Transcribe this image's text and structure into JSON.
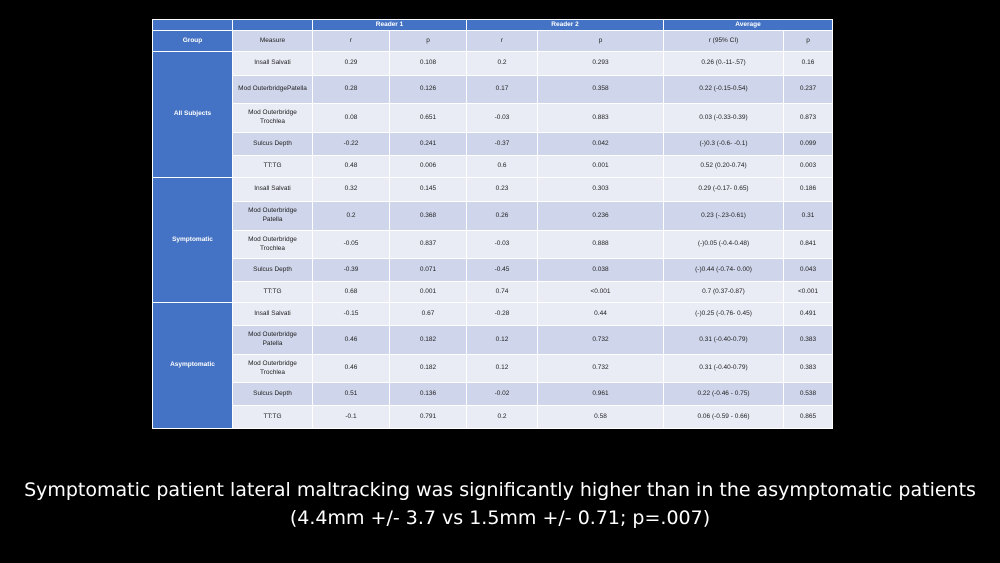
{
  "table": {
    "top_headers": [
      "",
      "",
      "Reader 1",
      "Reader 2",
      "Average"
    ],
    "headers": [
      "Group",
      "Measure",
      "r",
      "p",
      "r",
      "p",
      "r (95% CI)",
      "p"
    ],
    "groups": [
      {
        "name": "All Subjects",
        "rows": [
          [
            "Insall Salvati",
            "0.29",
            "0.108",
            "0.2",
            "0.293",
            "0.26 (0.-11-.57)",
            "0.16"
          ],
          [
            "Mod OuterbridgePatella",
            "0.28",
            "0.126",
            "0.17",
            "0.358",
            "0.22 (-0.15-0.54)",
            "0.237"
          ],
          [
            "Mod Outerbridge Trochlea",
            "0.08",
            "0.651",
            "-0.03",
            "0.883",
            "0.03 (-0.33-0.39)",
            "0.873"
          ],
          [
            "Sulcus Depth",
            "-0.22",
            "0.241",
            "-0.37",
            "0.042",
            "(-)0.3 (-0.6- -0.1)",
            "0.099"
          ],
          [
            "TT:TG",
            "0.48",
            "0.006",
            "0.6",
            "0.001",
            "0.52 (0.20-0.74)",
            "0.003"
          ]
        ]
      },
      {
        "name": "Symptomatic",
        "rows": [
          [
            "Insall Salvati",
            "0.32",
            "0.145",
            "0.23",
            "0.303",
            "0.29 (-0.17- 0.65)",
            "0.186"
          ],
          [
            "Mod Outerbridge Patella",
            "0.2",
            "0.368",
            "0.26",
            "0.236",
            "0.23 (-.23-0.61)",
            "0.31"
          ],
          [
            "Mod Outerbridge Trochlea",
            "-0.05",
            "0.837",
            "-0.03",
            "0.888",
            "(-)0.05 (-0.4-0.48)",
            "0.841"
          ],
          [
            "Sulcus Depth",
            "-0.39",
            "0.071",
            "-0.45",
            "0.038",
            "(-)0.44 (-0.74- 0.00)",
            "0.043"
          ],
          [
            "TT:TG",
            "0.68",
            "0.001",
            "0.74",
            "<0.001",
            "0.7 (0.37-0.87)",
            "<0.001"
          ]
        ]
      },
      {
        "name": "Asymptomatic",
        "rows": [
          [
            "Insall Salvati",
            "-0.15",
            "0.67",
            "-0.28",
            "0.44",
            "(-)0.25 (-0.76- 0.45)",
            "0.491"
          ],
          [
            "Mod Outerbridge Patella",
            "0.46",
            "0.182",
            "0.12",
            "0.732",
            "0.31 (-0.40-0.79)",
            "0.383"
          ],
          [
            "Mod Outerbridge Trochlea",
            "0.46",
            "0.182",
            "0.12",
            "0.732",
            "0.31 (-0.40-0.79)",
            "0.383"
          ],
          [
            "Sulcus Depth",
            "0.51",
            "0.136",
            "-0.02",
            "0.961",
            "0.22 (-0.46 - 0.75)",
            "0.538"
          ],
          [
            "TT:TG",
            "-0.1",
            "0.791",
            "0.2",
            "0.58",
            "0.06 (-0.59 - 0.66)",
            "0.865"
          ]
        ]
      }
    ]
  },
  "caption": "Symptomatic patient lateral maltracking was significantly higher than in the asymptomatic patients (4.4mm +/- 3.7 vs 1.5mm +/- 0.71; p=.007)"
}
